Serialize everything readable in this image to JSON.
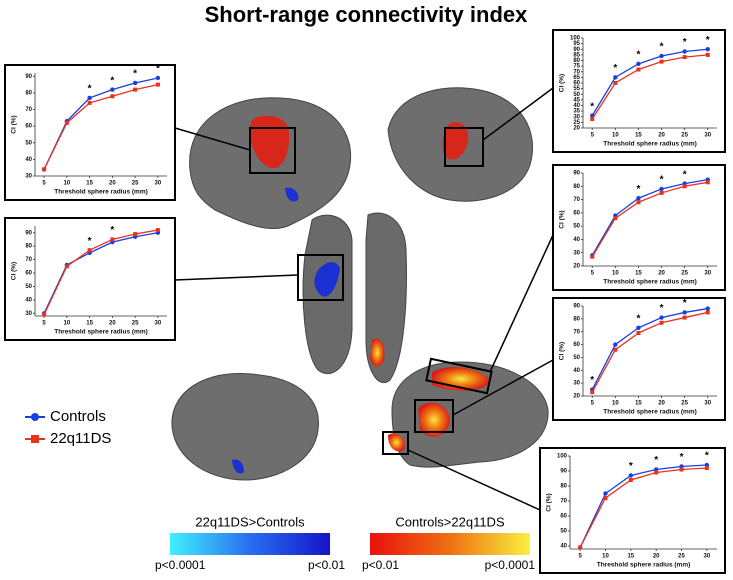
{
  "title": "Short-range connectivity index",
  "legend": {
    "position": "left"
  },
  "colorbars": [
    {
      "label": "22q11DS>Controls",
      "low": "p<0.0001",
      "high": "p<0.01"
    },
    {
      "label": "Controls>22q11DS",
      "low": "p<0.01",
      "high": "p<0.0001"
    }
  ],
  "chart_data": [
    {
      "type": "line",
      "xlabel": "Threshold sphere radius (mm)",
      "ylabel": "CI (%)",
      "x": [
        5,
        10,
        15,
        20,
        25,
        30
      ],
      "xlim": [
        3,
        32
      ],
      "xticks": [
        5,
        10,
        15,
        20,
        25,
        30
      ],
      "ylim": [
        30,
        92
      ],
      "yticks": [
        30,
        40,
        50,
        60,
        70,
        80,
        90
      ],
      "series": [
        {
          "name": "Controls",
          "color": "#1a3fe0",
          "marker": "circle",
          "values": [
            34,
            63,
            77,
            82,
            86,
            89
          ]
        },
        {
          "name": "22q11DS",
          "color": "#e8321e",
          "marker": "square",
          "values": [
            34,
            62,
            74,
            78,
            82,
            85
          ]
        }
      ],
      "annotations": [
        "*",
        "*",
        "*",
        "*"
      ],
      "annotation_x": [
        15,
        20,
        25,
        30
      ]
    },
    {
      "type": "line",
      "xlabel": "Threshold sphere radius (mm)",
      "ylabel": "CI (%)",
      "x": [
        5,
        10,
        15,
        20,
        25,
        30
      ],
      "xlim": [
        3,
        32
      ],
      "xticks": [
        5,
        10,
        15,
        20,
        25,
        30
      ],
      "ylim": [
        28,
        95
      ],
      "yticks": [
        30,
        40,
        50,
        60,
        70,
        80,
        90
      ],
      "series": [
        {
          "color": "#1a3fe0",
          "marker": "circle",
          "values": [
            30,
            66,
            75,
            83,
            87,
            90
          ]
        },
        {
          "color": "#e8321e",
          "marker": "square",
          "values": [
            29,
            65,
            77,
            85,
            89,
            92
          ]
        }
      ],
      "annotations": [
        "*",
        "*"
      ],
      "annotation_x": [
        15,
        20
      ]
    },
    {
      "type": "line",
      "xlabel": "Threshold sphere radius (mm)",
      "ylabel": "CI (%)",
      "x": [
        5,
        10,
        15,
        20,
        25,
        30
      ],
      "xlim": [
        3,
        32
      ],
      "xticks": [
        5,
        10,
        15,
        20,
        25,
        30
      ],
      "ylim": [
        20,
        100
      ],
      "yticks": [
        20,
        25,
        30,
        35,
        40,
        45,
        50,
        55,
        60,
        65,
        70,
        75,
        80,
        85,
        90,
        95,
        100
      ],
      "series": [
        {
          "color": "#1a3fe0",
          "marker": "circle",
          "values": [
            31,
            65,
            77,
            84,
            88,
            90
          ]
        },
        {
          "color": "#e8321e",
          "marker": "square",
          "values": [
            28,
            60,
            72,
            79,
            83,
            85
          ]
        }
      ],
      "annotations": [
        "*",
        "*",
        "*",
        "*",
        "*",
        "*"
      ],
      "annotation_x": [
        5,
        10,
        15,
        20,
        25,
        30
      ]
    },
    {
      "type": "line",
      "xlabel": "Threshold sphere radius (mm)",
      "ylabel": "CI (%)",
      "x": [
        5,
        10,
        15,
        20,
        25,
        30
      ],
      "xlim": [
        3,
        32
      ],
      "xticks": [
        5,
        10,
        15,
        20,
        25,
        30
      ],
      "ylim": [
        20,
        90
      ],
      "yticks": [
        20,
        30,
        40,
        50,
        60,
        70,
        80,
        90
      ],
      "series": [
        {
          "color": "#1a3fe0",
          "marker": "circle",
          "values": [
            28,
            58,
            71,
            78,
            82,
            85
          ]
        },
        {
          "color": "#e8321e",
          "marker": "square",
          "values": [
            27,
            56,
            68,
            75,
            80,
            83
          ]
        }
      ],
      "annotations": [
        "*",
        "*",
        "*"
      ],
      "annotation_x": [
        15,
        20,
        25
      ]
    },
    {
      "type": "line",
      "xlabel": "Threshold sphere radius (mm)",
      "ylabel": "CI (%)",
      "x": [
        5,
        10,
        15,
        20,
        25,
        30
      ],
      "xlim": [
        3,
        32
      ],
      "xticks": [
        5,
        10,
        15,
        20,
        25,
        30
      ],
      "ylim": [
        20,
        90
      ],
      "yticks": [
        20,
        30,
        40,
        50,
        60,
        70,
        80,
        90
      ],
      "series": [
        {
          "color": "#1a3fe0",
          "marker": "circle",
          "values": [
            25,
            60,
            73,
            81,
            85,
            88
          ]
        },
        {
          "color": "#e8321e",
          "marker": "square",
          "values": [
            23,
            56,
            69,
            77,
            81,
            85
          ]
        }
      ],
      "annotations": [
        "*",
        "*",
        "*",
        "*"
      ],
      "annotation_x": [
        5,
        15,
        20,
        25
      ]
    },
    {
      "type": "line",
      "xlabel": "Threshold sphere radius (mm)",
      "ylabel": "CI (%)",
      "x": [
        5,
        10,
        15,
        20,
        25,
        30
      ],
      "xlim": [
        3,
        32
      ],
      "xticks": [
        5,
        10,
        15,
        20,
        25,
        30
      ],
      "ylim": [
        38,
        100
      ],
      "yticks": [
        40,
        50,
        60,
        70,
        80,
        90,
        100
      ],
      "series": [
        {
          "color": "#1a3fe0",
          "marker": "circle",
          "values": [
            39,
            75,
            87,
            91,
            93,
            94
          ]
        },
        {
          "color": "#e8321e",
          "marker": "square",
          "values": [
            39,
            72,
            84,
            89,
            91,
            92
          ]
        }
      ],
      "annotations": [
        "*",
        "*",
        "*",
        "*"
      ],
      "annotation_x": [
        15,
        20,
        25,
        30
      ]
    }
  ]
}
